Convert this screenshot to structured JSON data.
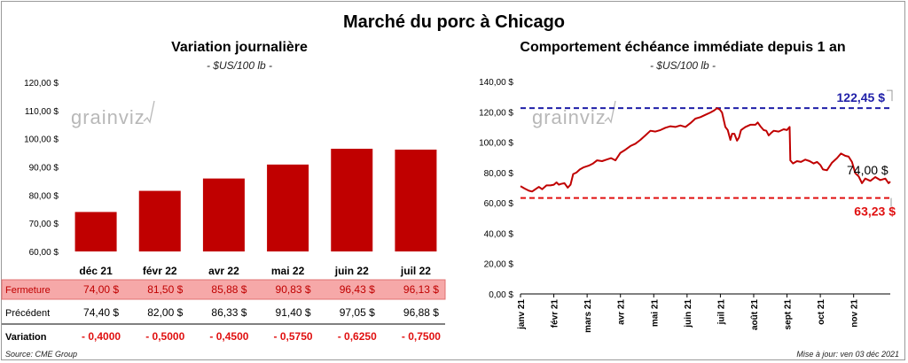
{
  "title": "Marché du porc à Chicago",
  "source": "Source: CME Group",
  "updated": "Mise à jour: ven 03 déc 2021",
  "watermark": "grainviz",
  "colors": {
    "bar": "#c00000",
    "line": "#c00000",
    "high": "#1f1fa8",
    "low": "#e01010",
    "highlight_row": "#f6a8a8",
    "negative": "#e01010"
  },
  "chart_data": [
    {
      "type": "bar",
      "title": "Variation journalière",
      "subtitle": "- $US/100 lb -",
      "categories": [
        "déc 21",
        "févr 22",
        "avr 22",
        "mai 22",
        "juin 22",
        "juil 22"
      ],
      "values": [
        74.0,
        81.5,
        85.88,
        90.83,
        96.43,
        96.13
      ],
      "ylim": [
        60,
        120
      ],
      "yticks": [
        "60,00 $",
        "70,00 $",
        "80,00 $",
        "90,00 $",
        "100,00 $",
        "110,00 $",
        "120,00 $"
      ],
      "grid": false,
      "table": {
        "rows": [
          {
            "label": "Fermeture",
            "values": [
              "74,00 $",
              "81,50 $",
              "85,88 $",
              "90,83 $",
              "96,43 $",
              "96,13 $"
            ],
            "highlight": true
          },
          {
            "label": "Précédent",
            "values": [
              "74,40 $",
              "82,00 $",
              "86,33 $",
              "91,40 $",
              "97,05 $",
              "96,88 $"
            ]
          },
          {
            "label": "Variation",
            "values": [
              "- 0,4000",
              "- 0,5000",
              "- 0,4500",
              "- 0,5750",
              "- 0,6250",
              "- 0,7500"
            ],
            "negative": true
          }
        ]
      }
    },
    {
      "type": "line",
      "title": "Comportement échéance immédiate depuis 1 an",
      "subtitle": "- $US/100 lb -",
      "ylim": [
        0,
        140
      ],
      "yticks": [
        "0,00 $",
        "20,00 $",
        "40,00 $",
        "60,00 $",
        "80,00 $",
        "100,00 $",
        "120,00 $",
        "140,00 $"
      ],
      "xlabels": [
        "janv 21",
        "févr 21",
        "mars 21",
        "avr 21",
        "mai 21",
        "juin 21",
        "juil 21",
        "août 21",
        "sept 21",
        "oct 21",
        "nov 21"
      ],
      "xmax": 11.1,
      "grid": false,
      "high": {
        "value": 122.45,
        "label": "122,45 $"
      },
      "low": {
        "value": 63.23,
        "label": "63,23 $"
      },
      "last": {
        "value": 74.0,
        "label": "74,00 $"
      },
      "points": [
        [
          0.0,
          71.0
        ],
        [
          0.12,
          69.5
        ],
        [
          0.25,
          68.0
        ],
        [
          0.35,
          67.5
        ],
        [
          0.45,
          69.0
        ],
        [
          0.55,
          70.5
        ],
        [
          0.65,
          69.0
        ],
        [
          0.78,
          71.5
        ],
        [
          0.9,
          71.5
        ],
        [
          1.0,
          72.0
        ],
        [
          1.08,
          73.5
        ],
        [
          1.15,
          72.0
        ],
        [
          1.22,
          72.5
        ],
        [
          1.32,
          73.0
        ],
        [
          1.42,
          70.0
        ],
        [
          1.5,
          72.0
        ],
        [
          1.58,
          79.0
        ],
        [
          1.68,
          80.0
        ],
        [
          1.78,
          82.0
        ],
        [
          1.9,
          83.5
        ],
        [
          2.05,
          84.5
        ],
        [
          2.18,
          86.0
        ],
        [
          2.3,
          88.0
        ],
        [
          2.45,
          87.5
        ],
        [
          2.58,
          88.5
        ],
        [
          2.72,
          89.5
        ],
        [
          2.85,
          88.0
        ],
        [
          3.0,
          93.0
        ],
        [
          3.15,
          95.0
        ],
        [
          3.3,
          97.5
        ],
        [
          3.45,
          99.0
        ],
        [
          3.6,
          101.5
        ],
        [
          3.75,
          104.5
        ],
        [
          3.9,
          107.5
        ],
        [
          4.05,
          107.0
        ],
        [
          4.2,
          108.0
        ],
        [
          4.35,
          109.5
        ],
        [
          4.5,
          110.5
        ],
        [
          4.65,
          110.0
        ],
        [
          4.8,
          111.0
        ],
        [
          4.95,
          110.0
        ],
        [
          5.1,
          112.5
        ],
        [
          5.25,
          115.5
        ],
        [
          5.4,
          116.5
        ],
        [
          5.55,
          118.0
        ],
        [
          5.7,
          119.5
        ],
        [
          5.82,
          121.0
        ],
        [
          5.9,
          122.45
        ],
        [
          5.98,
          121.5
        ],
        [
          6.05,
          119.5
        ],
        [
          6.15,
          110.0
        ],
        [
          6.22,
          108.0
        ],
        [
          6.3,
          101.5
        ],
        [
          6.35,
          105.5
        ],
        [
          6.42,
          105.5
        ],
        [
          6.5,
          101.0
        ],
        [
          6.56,
          103.0
        ],
        [
          6.62,
          108.0
        ],
        [
          6.75,
          110.0
        ],
        [
          6.9,
          111.5
        ],
        [
          7.05,
          111.5
        ],
        [
          7.12,
          113.0
        ],
        [
          7.2,
          110.5
        ],
        [
          7.3,
          108.0
        ],
        [
          7.38,
          107.5
        ],
        [
          7.45,
          104.5
        ],
        [
          7.52,
          106.0
        ],
        [
          7.6,
          107.5
        ],
        [
          7.75,
          107.0
        ],
        [
          7.9,
          108.5
        ],
        [
          8.0,
          108.0
        ],
        [
          8.08,
          110.0
        ],
        [
          8.1,
          88.0
        ],
        [
          8.18,
          86.0
        ],
        [
          8.3,
          87.5
        ],
        [
          8.42,
          87.0
        ],
        [
          8.55,
          88.5
        ],
        [
          8.68,
          87.5
        ],
        [
          8.8,
          86.0
        ],
        [
          8.9,
          87.0
        ],
        [
          9.0,
          85.0
        ],
        [
          9.08,
          82.0
        ],
        [
          9.2,
          81.5
        ],
        [
          9.35,
          86.5
        ],
        [
          9.5,
          89.5
        ],
        [
          9.62,
          92.5
        ],
        [
          9.75,
          91.0
        ],
        [
          9.85,
          90.5
        ],
        [
          9.95,
          87.0
        ],
        [
          10.05,
          79.5
        ],
        [
          10.15,
          77.5
        ],
        [
          10.25,
          73.0
        ],
        [
          10.35,
          76.0
        ],
        [
          10.5,
          74.5
        ],
        [
          10.65,
          77.0
        ],
        [
          10.8,
          75.0
        ],
        [
          10.95,
          76.0
        ],
        [
          11.05,
          73.0
        ],
        [
          11.1,
          74.0
        ]
      ]
    }
  ]
}
